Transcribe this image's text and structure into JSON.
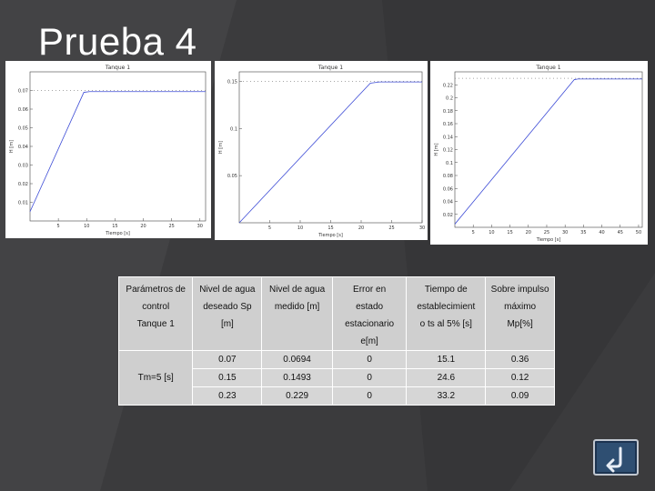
{
  "slide": {
    "title": "Prueba 4"
  },
  "plots": [
    {
      "title": "Tanque 1",
      "ylabel": "H [m]",
      "xlabel": "Tiempo [s]",
      "yticks": [
        "0.07",
        "0.06",
        "0.05",
        "0.04",
        "0.03",
        "0.02",
        "0.01"
      ],
      "xticks": [
        "5",
        "10",
        "15",
        "20",
        "25",
        "30"
      ],
      "chart_data": {
        "type": "line",
        "title": "Tanque 1",
        "xlabel": "Tiempo [s]",
        "ylabel": "H [m]",
        "xlim": [
          0,
          31
        ],
        "ylim": [
          0,
          0.08
        ],
        "series": [
          {
            "style": "dotted",
            "x": [
              0,
              31
            ],
            "y": [
              0.07,
              0.07
            ]
          },
          {
            "style": "solid",
            "x": [
              0,
              9.5,
              10.5,
              31
            ],
            "y": [
              0.005,
              0.069,
              0.0694,
              0.0694
            ]
          }
        ]
      }
    },
    {
      "title": "Tanque 1",
      "ylabel": "H [m]",
      "xlabel": "Tiempo [s]",
      "yticks": [
        "0.15",
        "0.1",
        "0.05"
      ],
      "xticks": [
        "5",
        "10",
        "15",
        "20",
        "25",
        "30"
      ],
      "chart_data": {
        "type": "line",
        "title": "Tanque 1",
        "xlabel": "Tiempo [s]",
        "ylabel": "H [m]",
        "xlim": [
          0,
          30
        ],
        "ylim": [
          0,
          0.16
        ],
        "series": [
          {
            "style": "dotted",
            "x": [
              0,
              30
            ],
            "y": [
              0.15,
              0.15
            ]
          },
          {
            "style": "solid",
            "x": [
              0,
              21.5,
              23,
              30
            ],
            "y": [
              0.0,
              0.148,
              0.1493,
              0.1493
            ]
          }
        ]
      }
    },
    {
      "title": "Tanque 1",
      "ylabel": "H [m]",
      "xlabel": "Tiempo [s]",
      "yticks": [
        "0.22",
        "0.2",
        "0.18",
        "0.16",
        "0.14",
        "0.12",
        "0.1",
        "0.08",
        "0.06",
        "0.04",
        "0.02"
      ],
      "xticks": [
        "5",
        "10",
        "15",
        "20",
        "25",
        "30",
        "35",
        "40",
        "45",
        "50"
      ],
      "chart_data": {
        "type": "line",
        "title": "Tanque 1",
        "xlabel": "Tiempo [s]",
        "ylabel": "H [m]",
        "xlim": [
          0,
          51
        ],
        "ylim": [
          0,
          0.24
        ],
        "series": [
          {
            "style": "dotted",
            "x": [
              0,
              51
            ],
            "y": [
              0.23,
              0.23
            ]
          },
          {
            "style": "solid",
            "x": [
              0,
              32.5,
              33.5,
              51
            ],
            "y": [
              0.005,
              0.228,
              0.229,
              0.229
            ]
          }
        ]
      }
    }
  ],
  "table": {
    "headers": [
      [
        "Parámetros de",
        "control",
        "",
        "Tanque 1"
      ],
      [
        "Nivel de agua",
        "deseado Sp",
        "[m]"
      ],
      [
        "Nivel de agua",
        "medido [m]"
      ],
      [
        "Error en",
        "estado",
        "estacionario",
        "e[m]"
      ],
      [
        "Tiempo de",
        "establecimient",
        "o ts al 5% [s]"
      ],
      [
        "Sobre impulso",
        "máximo",
        "Mp[%]"
      ]
    ],
    "row_label": "Tm=5 [s]",
    "rows": [
      [
        "0.07",
        "0.0694",
        "0",
        "15.1",
        "0.36"
      ],
      [
        "0.15",
        "0.1493",
        "0",
        "24.6",
        "0.12"
      ],
      [
        "0.23",
        "0.229",
        "0",
        "33.2",
        "0.09"
      ]
    ]
  },
  "nav": {
    "back_icon": "return-arrow-icon",
    "colors": {
      "button": "#2f4f72",
      "border": "#c0c6cf"
    }
  },
  "colors": {
    "background": "#3b3b3d",
    "series": "#3c4bd6",
    "setpoint": "#888888"
  }
}
